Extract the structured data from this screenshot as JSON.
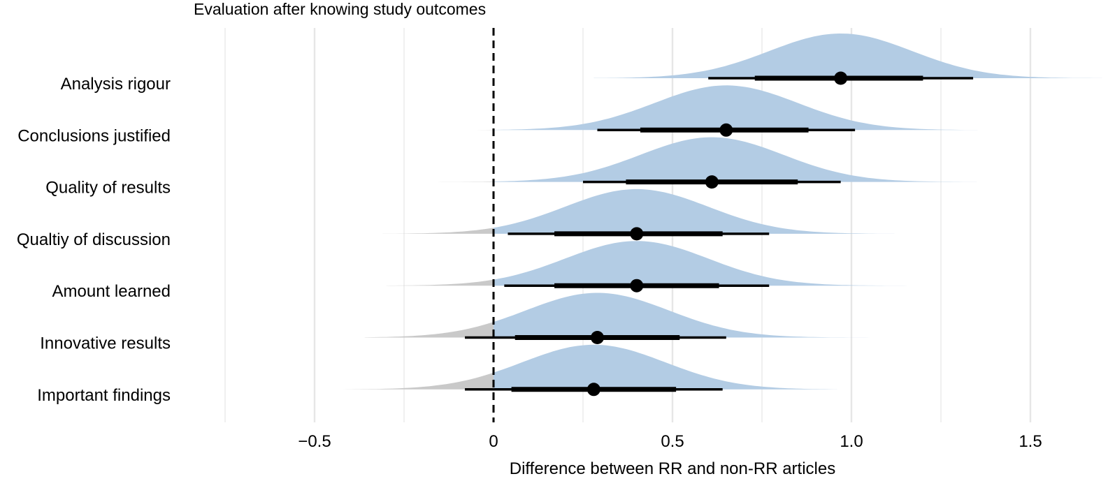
{
  "chart_data": {
    "type": "half-eye (posterior density with interval)",
    "title": "Evaluation after knowing study outcomes",
    "xlabel": "Difference between RR and non-RR articles",
    "ylabel": "",
    "xlim": [
      -0.75,
      1.7
    ],
    "xticks": [
      -0.5,
      0,
      0.5,
      1.0,
      1.5
    ],
    "xtick_labels": [
      "−0.5",
      "0",
      "0.5",
      "1.0",
      "1.5"
    ],
    "reference_line": 0,
    "grid": "vertical",
    "colors": {
      "density_positive": "#b3cce4",
      "density_negative": "#c9c9c9",
      "interval": "#000000",
      "gridline": "#e6e6e6"
    },
    "series": [
      {
        "label": "Analysis rigour",
        "median": 0.97,
        "ci66": [
          0.73,
          1.2
        ],
        "ci95": [
          0.6,
          1.34
        ],
        "range": [
          0.28,
          1.7
        ],
        "sd": 0.2
      },
      {
        "label": "Conclusions justified",
        "median": 0.65,
        "ci66": [
          0.41,
          0.88
        ],
        "ci95": [
          0.29,
          1.01
        ],
        "range": [
          -0.15,
          1.38
        ],
        "sd": 0.2
      },
      {
        "label": "Quality of results",
        "median": 0.61,
        "ci66": [
          0.37,
          0.85
        ],
        "ci95": [
          0.25,
          0.97
        ],
        "range": [
          -0.17,
          1.35
        ],
        "sd": 0.2
      },
      {
        "label": "Qualtiy of discussion",
        "median": 0.4,
        "ci66": [
          0.17,
          0.64
        ],
        "ci95": [
          0.04,
          0.77
        ],
        "range": [
          -0.31,
          1.12
        ],
        "sd": 0.2
      },
      {
        "label": "Amount learned",
        "median": 0.4,
        "ci66": [
          0.17,
          0.63
        ],
        "ci95": [
          0.03,
          0.77
        ],
        "range": [
          -0.3,
          1.17
        ],
        "sd": 0.2
      },
      {
        "label": "Innovative results",
        "median": 0.29,
        "ci66": [
          0.06,
          0.52
        ],
        "ci95": [
          -0.08,
          0.65
        ],
        "range": [
          -0.36,
          1.1
        ],
        "sd": 0.2
      },
      {
        "label": "Important findings",
        "median": 0.28,
        "ci66": [
          0.05,
          0.51
        ],
        "ci95": [
          -0.08,
          0.64
        ],
        "range": [
          -0.42,
          0.96
        ],
        "sd": 0.2
      }
    ]
  }
}
